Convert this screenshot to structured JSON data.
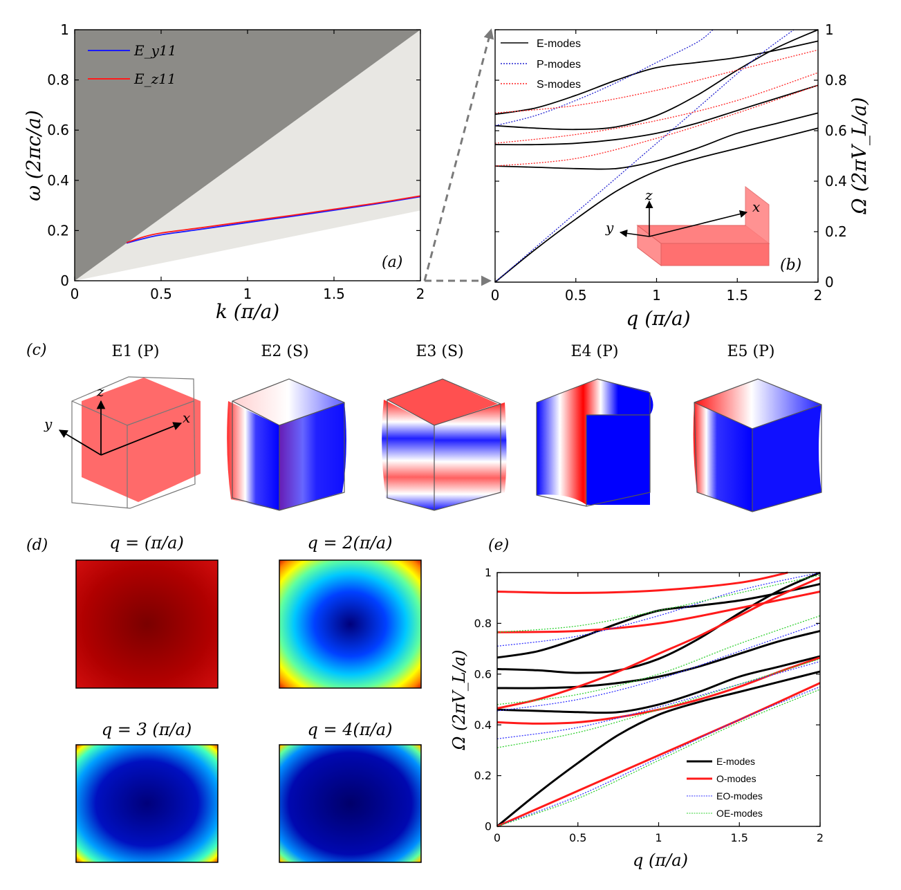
{
  "colors": {
    "light_cone": "#8c8b87",
    "band_region": "#e8e7e3",
    "lower_band": "#ededea",
    "blue": "#1a1aff",
    "red": "#ff1a1a",
    "emode": "#000000",
    "pmode": "#2020d0",
    "smode": "#ff2020",
    "eomode": "#3030ff",
    "oemode": "#30d030",
    "cube_red": "#ff6a6a",
    "arrow_gray": "#7a7a7a"
  },
  "chart_data": [
    {
      "id": "a",
      "type": "line",
      "panel_label": "(a)",
      "xlabel": "k (π/a)",
      "ylabel": "ω (2πc/a)",
      "xlim": [
        0,
        2
      ],
      "ylim": [
        0,
        1
      ],
      "xticks": [
        "0",
        "0.5",
        "1",
        "1.5",
        "2"
      ],
      "yticks": [
        "0",
        "0.2",
        "0.4",
        "0.6",
        "0.8",
        "1"
      ],
      "light_line_slope": 0.5,
      "lower_band_end": 0.28,
      "legend": [
        "E_y11",
        "E_z11"
      ],
      "series": [
        {
          "name": "E_y11",
          "color": "blue",
          "x": [
            0.3,
            0.4,
            0.5,
            0.75,
            1.0,
            1.25,
            1.5,
            1.75,
            2.0
          ],
          "y": [
            0.15,
            0.168,
            0.183,
            0.207,
            0.232,
            0.256,
            0.281,
            0.307,
            0.335
          ]
        },
        {
          "name": "E_z11",
          "color": "red",
          "x": [
            0.3,
            0.4,
            0.5,
            0.75,
            1.0,
            1.25,
            1.5,
            1.75,
            2.0
          ],
          "y": [
            0.152,
            0.175,
            0.19,
            0.213,
            0.237,
            0.26,
            0.285,
            0.31,
            0.338
          ]
        }
      ]
    },
    {
      "id": "b",
      "type": "line",
      "panel_label": "(b)",
      "xlabel": "q (π/a)",
      "ylabel": "Ω (2πV_L/a)",
      "xlim": [
        0,
        2
      ],
      "ylim": [
        0,
        1
      ],
      "xticks": [
        "0",
        "0.5",
        "1",
        "1.5",
        "2"
      ],
      "yticks": [
        "0",
        "0.2",
        "0.4",
        "0.6",
        "0.8",
        "1"
      ],
      "legend": [
        "E-modes",
        "P-modes",
        "S-modes"
      ],
      "axes_label": {
        "x": "x",
        "y": "y",
        "z": "z"
      },
      "series": [
        {
          "name": "E-modes",
          "color": "emode",
          "style": "solid",
          "x": [
            0,
            0.25,
            0.5,
            0.75,
            1.0,
            1.25,
            1.5,
            1.75,
            2.0
          ],
          "y": [
            0,
            0.13,
            0.25,
            0.36,
            0.44,
            0.49,
            0.53,
            0.57,
            0.61
          ]
        },
        {
          "name": "E-modes",
          "color": "emode",
          "style": "solid",
          "x": [
            0,
            0.25,
            0.5,
            0.75,
            1.0,
            1.25,
            1.5,
            1.75,
            2.0
          ],
          "y": [
            0.46,
            0.455,
            0.45,
            0.45,
            0.48,
            0.53,
            0.59,
            0.63,
            0.67
          ]
        },
        {
          "name": "E-modes",
          "color": "emode",
          "style": "solid",
          "x": [
            0,
            0.25,
            0.5,
            0.75,
            1.0,
            1.25,
            1.5,
            1.75,
            2.0
          ],
          "y": [
            0.545,
            0.545,
            0.55,
            0.565,
            0.59,
            0.63,
            0.68,
            0.73,
            0.78
          ]
        },
        {
          "name": "E-modes",
          "color": "emode",
          "style": "solid",
          "x": [
            0,
            0.25,
            0.5,
            0.75,
            1.0,
            1.25,
            1.5,
            1.75,
            2.0
          ],
          "y": [
            0.62,
            0.61,
            0.605,
            0.615,
            0.66,
            0.74,
            0.84,
            0.93,
            1.0
          ]
        },
        {
          "name": "E-modes",
          "color": "emode",
          "style": "solid",
          "x": [
            0,
            0.25,
            0.5,
            0.75,
            1.0,
            1.25,
            1.5,
            1.75,
            2.0
          ],
          "y": [
            0.665,
            0.69,
            0.74,
            0.8,
            0.85,
            0.87,
            0.89,
            0.92,
            0.955
          ]
        },
        {
          "name": "P-modes",
          "color": "pmode",
          "style": "dotted",
          "x": [
            0,
            0.4,
            0.8,
            1.2,
            1.6,
            1.85
          ],
          "y": [
            0,
            0.22,
            0.44,
            0.66,
            0.88,
            1.0
          ]
        },
        {
          "name": "P-modes",
          "color": "pmode",
          "style": "dotted",
          "x": [
            0,
            0.25,
            0.5,
            0.75,
            1.0,
            1.25,
            1.35
          ],
          "y": [
            0.62,
            0.66,
            0.72,
            0.79,
            0.87,
            0.95,
            1.0
          ]
        },
        {
          "name": "S-modes",
          "color": "smode",
          "style": "dotted",
          "x": [
            0,
            0.5,
            1.0,
            1.5,
            2.0
          ],
          "y": [
            0.46,
            0.49,
            0.57,
            0.67,
            0.78
          ]
        },
        {
          "name": "S-modes",
          "color": "smode",
          "style": "dotted",
          "x": [
            0,
            0.5,
            1.0,
            1.5,
            2.0
          ],
          "y": [
            0.55,
            0.585,
            0.64,
            0.72,
            0.83
          ]
        },
        {
          "name": "S-modes",
          "color": "smode",
          "style": "dotted",
          "x": [
            0,
            0.5,
            1.0,
            1.5,
            2.0
          ],
          "y": [
            0.67,
            0.7,
            0.76,
            0.84,
            0.92
          ]
        }
      ]
    },
    {
      "id": "e",
      "type": "line",
      "panel_label": "(e)",
      "xlabel": "q (π/a)",
      "ylabel": "Ω (2πV_L/a)",
      "xlim": [
        0,
        2
      ],
      "ylim": [
        0,
        1
      ],
      "xticks": [
        "0",
        "0.5",
        "1",
        "1.5",
        "2"
      ],
      "yticks": [
        "0",
        "0.2",
        "0.4",
        "0.6",
        "0.8",
        "1"
      ],
      "legend": [
        "E-modes",
        "O-modes",
        "EO-modes",
        "OE-modes"
      ],
      "series": [
        {
          "name": "E-modes",
          "color": "emode",
          "style": "thick",
          "x": [
            0,
            0.25,
            0.5,
            0.75,
            1.0,
            1.25,
            1.5,
            1.75,
            2.0
          ],
          "y": [
            0,
            0.13,
            0.25,
            0.36,
            0.44,
            0.49,
            0.53,
            0.57,
            0.61
          ]
        },
        {
          "name": "E-modes",
          "color": "emode",
          "style": "thick",
          "x": [
            0,
            0.25,
            0.5,
            0.75,
            1.0,
            1.25,
            1.5,
            1.75,
            2.0
          ],
          "y": [
            0.46,
            0.455,
            0.45,
            0.45,
            0.48,
            0.53,
            0.59,
            0.63,
            0.67
          ]
        },
        {
          "name": "E-modes",
          "color": "emode",
          "style": "thick",
          "x": [
            0,
            0.25,
            0.5,
            0.75,
            1.0,
            1.25,
            1.5,
            1.75,
            2.0
          ],
          "y": [
            0.545,
            0.545,
            0.55,
            0.565,
            0.59,
            0.63,
            0.68,
            0.73,
            0.77
          ]
        },
        {
          "name": "E-modes",
          "color": "emode",
          "style": "thick",
          "x": [
            0,
            0.25,
            0.5,
            0.75,
            1.0,
            1.25,
            1.5,
            1.75,
            2.0
          ],
          "y": [
            0.62,
            0.615,
            0.605,
            0.615,
            0.66,
            0.74,
            0.84,
            0.93,
            1.0
          ]
        },
        {
          "name": "E-modes",
          "color": "emode",
          "style": "thick",
          "x": [
            0,
            0.25,
            0.5,
            0.75,
            1.0,
            1.25,
            1.5,
            1.75,
            2.0
          ],
          "y": [
            0.665,
            0.69,
            0.74,
            0.8,
            0.85,
            0.87,
            0.89,
            0.92,
            0.955
          ]
        },
        {
          "name": "O-modes",
          "color": "red",
          "style": "thick",
          "x": [
            0,
            0.5,
            1.0,
            1.5,
            2.0
          ],
          "y": [
            0,
            0.14,
            0.28,
            0.42,
            0.565
          ]
        },
        {
          "name": "O-modes",
          "color": "red",
          "style": "thick",
          "x": [
            0,
            0.25,
            0.5,
            0.75,
            1.0,
            1.25,
            1.5,
            1.75,
            2.0
          ],
          "y": [
            0.41,
            0.405,
            0.41,
            0.43,
            0.46,
            0.5,
            0.55,
            0.61,
            0.665
          ]
        },
        {
          "name": "O-modes",
          "color": "red",
          "style": "thick",
          "x": [
            0,
            0.25,
            0.5,
            0.75,
            1.0,
            1.25,
            1.5,
            1.75,
            2.0
          ],
          "y": [
            0.465,
            0.5,
            0.55,
            0.61,
            0.68,
            0.75,
            0.83,
            0.91,
            0.98
          ]
        },
        {
          "name": "O-modes",
          "color": "red",
          "style": "thick",
          "x": [
            0,
            0.5,
            1.0,
            1.5,
            2.0
          ],
          "y": [
            0.765,
            0.77,
            0.8,
            0.86,
            0.925
          ]
        },
        {
          "name": "O-modes",
          "color": "red",
          "style": "thick",
          "x": [
            0,
            0.5,
            1.0,
            1.5,
            1.8
          ],
          "y": [
            0.925,
            0.92,
            0.93,
            0.96,
            1.0
          ]
        },
        {
          "name": "EO-modes",
          "color": "eomode",
          "style": "dotted",
          "x": [
            0,
            0.5,
            1.0,
            1.5,
            2.0
          ],
          "y": [
            0.0,
            0.12,
            0.27,
            0.42,
            0.55
          ]
        },
        {
          "name": "EO-modes",
          "color": "eomode",
          "style": "dotted",
          "x": [
            0,
            0.5,
            1.0,
            1.5,
            2.0
          ],
          "y": [
            0.345,
            0.39,
            0.47,
            0.56,
            0.65
          ]
        },
        {
          "name": "EO-modes",
          "color": "eomode",
          "style": "dotted",
          "x": [
            0,
            0.5,
            1.0,
            1.5,
            2.0
          ],
          "y": [
            0.455,
            0.5,
            0.58,
            0.69,
            0.8
          ]
        },
        {
          "name": "EO-modes",
          "color": "eomode",
          "style": "dotted",
          "x": [
            0,
            0.5,
            1.0,
            1.5,
            2.0
          ],
          "y": [
            0.71,
            0.75,
            0.83,
            0.93,
            1.0
          ]
        },
        {
          "name": "OE-modes",
          "color": "oemode",
          "style": "dotted",
          "x": [
            0,
            0.5,
            1.0,
            1.5,
            2.0
          ],
          "y": [
            0.0,
            0.11,
            0.26,
            0.41,
            0.54
          ]
        },
        {
          "name": "OE-modes",
          "color": "oemode",
          "style": "dotted",
          "x": [
            0,
            0.5,
            1.0,
            1.5,
            2.0
          ],
          "y": [
            0.31,
            0.37,
            0.46,
            0.56,
            0.66
          ]
        },
        {
          "name": "OE-modes",
          "color": "oemode",
          "style": "dotted",
          "x": [
            0,
            0.5,
            1.0,
            1.5,
            2.0
          ],
          "y": [
            0.48,
            0.52,
            0.6,
            0.72,
            0.83
          ]
        },
        {
          "name": "OE-modes",
          "color": "oemode",
          "style": "dotted",
          "x": [
            0,
            0.5,
            1.0,
            1.5,
            2.0
          ],
          "y": [
            0.765,
            0.79,
            0.85,
            0.92,
            0.99
          ]
        }
      ]
    }
  ],
  "panel_c": {
    "label": "(c)",
    "modes": [
      "E1 (P)",
      "E2 (S)",
      "E3 (S)",
      "E4 (P)",
      "E5 (P)"
    ],
    "axes_label": {
      "x": "x",
      "y": "y",
      "z": "z"
    }
  },
  "panel_d": {
    "label": "(d)",
    "titles": [
      "q = (π/a)",
      "q = 2(π/a)",
      "q = 3 (π/a)",
      "q = 4(π/a)"
    ]
  }
}
